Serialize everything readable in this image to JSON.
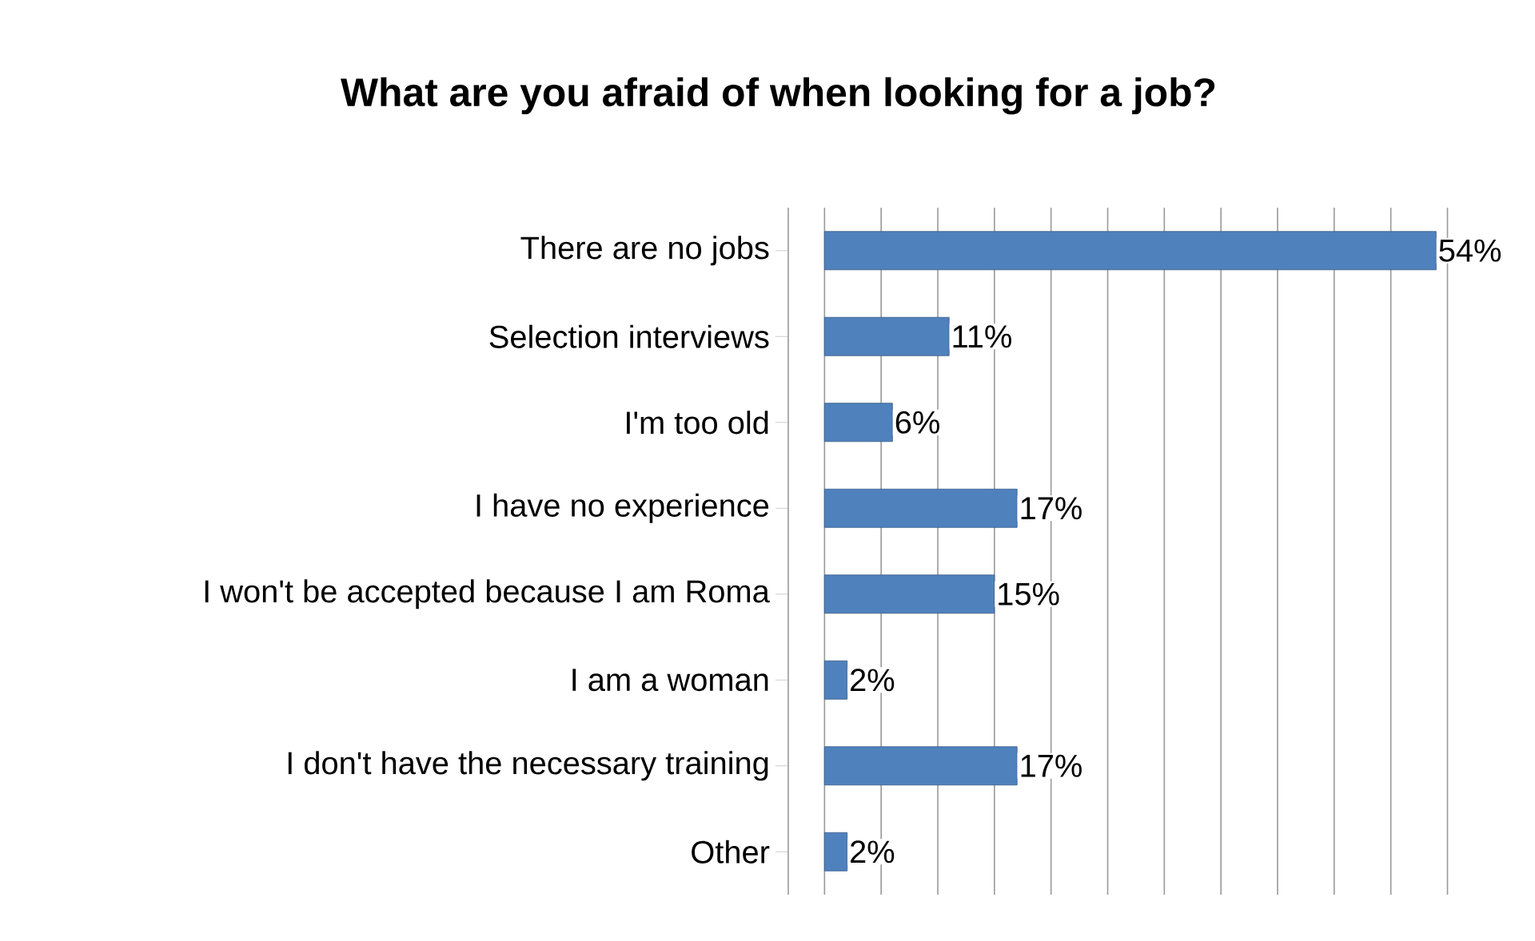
{
  "chart_data": {
    "type": "bar",
    "orientation": "horizontal",
    "title": "What are you afraid of when looking for a job?",
    "categories": [
      "There are no jobs",
      "Selection interviews",
      "I'm too old",
      "I have no experience",
      "I won't be accepted because I am Roma",
      "I am a woman",
      "I don't have the necessary training",
      "Other"
    ],
    "values": [
      54,
      11,
      6,
      17,
      15,
      2,
      17,
      2
    ],
    "value_labels": [
      "54%",
      "11%",
      "6%",
      "17%",
      "15%",
      "2%",
      "17%",
      "2%"
    ],
    "color": "#4f81bd",
    "grid": "x",
    "tick_labels": "y"
  }
}
